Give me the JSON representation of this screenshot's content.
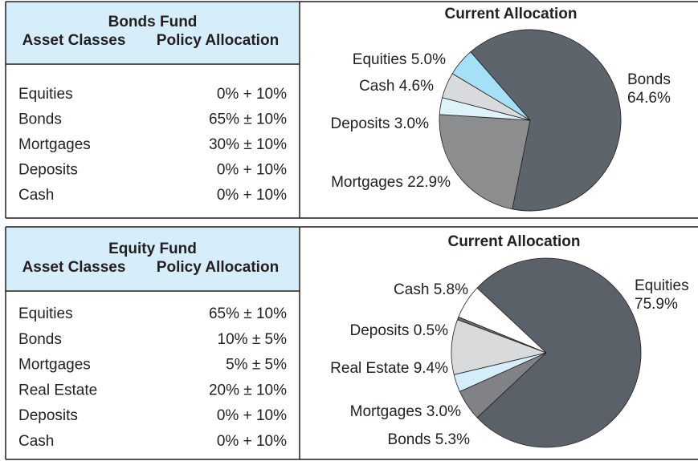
{
  "panels": [
    {
      "table": {
        "title": "Bonds Fund",
        "columns": [
          "Asset Classes",
          "Policy Allocation"
        ],
        "rows": [
          [
            "Equities",
            "0% + 10%"
          ],
          [
            "Bonds",
            "65% ± 10%"
          ],
          [
            "Mortgages",
            "30% ± 10%"
          ],
          [
            "Deposits",
            "0% + 10%"
          ],
          [
            "Cash",
            "0% + 10%"
          ]
        ]
      }
    },
    {
      "table": {
        "title": "Equity Fund",
        "columns": [
          "Asset Classes",
          "Policy Allocation"
        ],
        "rows": [
          [
            "Equities",
            "65% ± 10%"
          ],
          [
            "Bonds",
            "10% ± 5%"
          ],
          [
            "Mortgages",
            "5% ± 5%"
          ],
          [
            "Real Estate",
            "20% ± 10%"
          ],
          [
            "Deposits",
            "0% + 10%"
          ],
          [
            "Cash",
            "0% + 10%"
          ]
        ]
      }
    }
  ],
  "chart_data": [
    {
      "type": "pie",
      "title": "Current Allocation",
      "categories": [
        "Bonds",
        "Mortgages",
        "Deposits",
        "Cash",
        "Equities"
      ],
      "values": [
        64.6,
        22.9,
        3.0,
        4.6,
        5.0
      ],
      "value_labels": [
        "64.6%",
        "22.9%",
        "3.0%",
        "4.6%",
        "5.0%"
      ],
      "colors": [
        "#5d646b",
        "#8c8d8f",
        "#dff2fb",
        "#d9dadb",
        "#a6e0f7"
      ]
    },
    {
      "type": "pie",
      "title": "Current Allocation",
      "categories": [
        "Equities",
        "Bonds",
        "Mortgages",
        "Real Estate",
        "Deposits",
        "Cash"
      ],
      "values": [
        75.9,
        5.3,
        3.0,
        9.4,
        0.5,
        5.8
      ],
      "value_labels": [
        "75.9%",
        "5.3%",
        "3.0%",
        "9.4%",
        "0.5%",
        "5.8%"
      ],
      "colors": [
        "#5a6169",
        "#808285",
        "#d6eefa",
        "#d9dadb",
        "#6d6e70",
        "#ffffff"
      ]
    }
  ]
}
